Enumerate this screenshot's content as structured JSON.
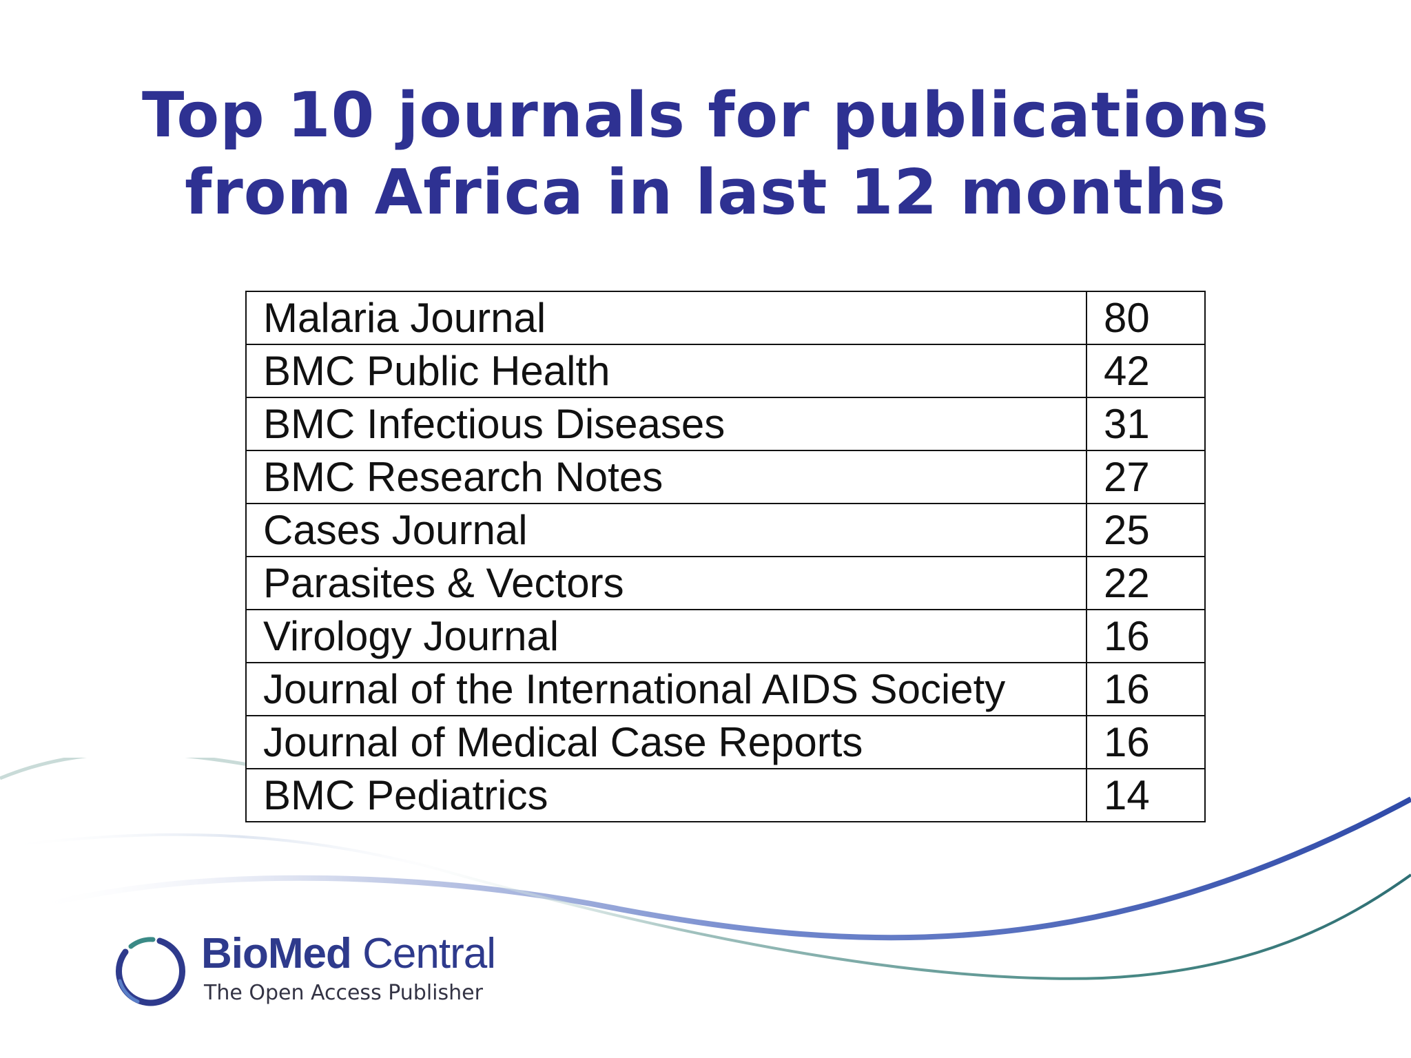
{
  "slide": {
    "title_line1": "Top 10 journals for publications",
    "title_line2": "from Africa in last 12 months"
  },
  "journals": [
    {
      "name": "Malaria Journal",
      "count": "80"
    },
    {
      "name": "BMC Public Health",
      "count": "42"
    },
    {
      "name": "BMC Infectious Diseases",
      "count": "31"
    },
    {
      "name": "BMC Research Notes",
      "count": "27"
    },
    {
      "name": "Cases Journal",
      "count": "25"
    },
    {
      "name": "Parasites & Vectors",
      "count": "22"
    },
    {
      "name": "Virology Journal",
      "count": "16"
    },
    {
      "name": "Journal of the International AIDS Society",
      "count": "16"
    },
    {
      "name": "Journal of Medical Case Reports",
      "count": "16"
    },
    {
      "name": "BMC Pediatrics",
      "count": "14"
    }
  ],
  "logo": {
    "name_bold": "BioMed",
    "name_light": " Central",
    "tagline": "The Open Access Publisher",
    "icon": "biomed-central-ring-icon"
  },
  "colors": {
    "title": "#2e3192",
    "swoosh_blue": "#3b55b0",
    "swoosh_teal": "#3a7a78",
    "logo_text": "#2e3a8c"
  }
}
